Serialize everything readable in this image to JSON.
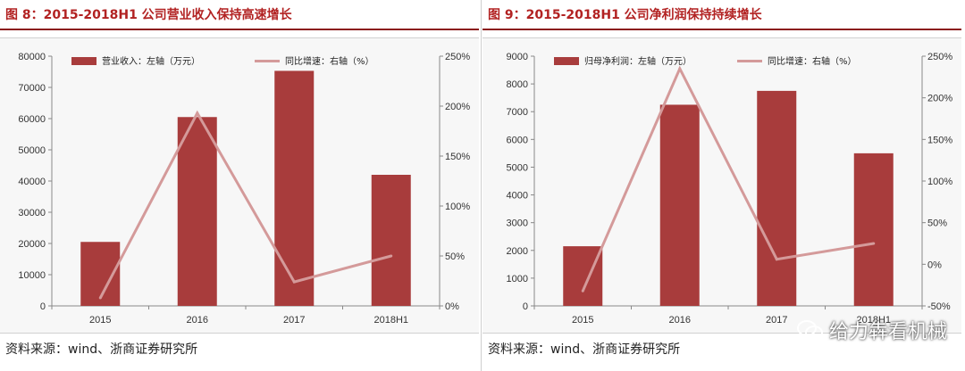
{
  "footer": {
    "source": "资料来源：wind、浙商证券研究所"
  },
  "watermark": {
    "text": "给力犇看机械",
    "icon": "wechat-icon"
  },
  "colors": {
    "bar": "#a83c3c",
    "line": "#d49a9a",
    "axis": "#888888"
  },
  "chart_data": [
    {
      "title": "图 8：2015-2018H1 公司营业收入保持高速增长",
      "type": "bar",
      "categories": [
        "2015",
        "2016",
        "2017",
        "2018H1"
      ],
      "series": [
        {
          "name": "营业收入：左轴（万元）",
          "type": "bar",
          "axis": "left",
          "values": [
            20500,
            60500,
            75300,
            42000
          ]
        },
        {
          "name": "同比增速：右轴（%）",
          "type": "line",
          "axis": "right",
          "values": [
            8,
            193,
            24,
            50
          ]
        }
      ],
      "ylim_left": [
        0,
        80000
      ],
      "yticks_left": [
        "0",
        "10000",
        "20000",
        "30000",
        "40000",
        "50000",
        "60000",
        "70000",
        "80000"
      ],
      "ylim_right": [
        0,
        250
      ],
      "yticks_right": [
        "0%",
        "50%",
        "100%",
        "150%",
        "200%",
        "250%"
      ],
      "legend": "top"
    },
    {
      "title": "图 9：2015-2018H1 公司净利润保持持续增长",
      "type": "bar",
      "categories": [
        "2015",
        "2016",
        "2017",
        "2018H1"
      ],
      "series": [
        {
          "name": "归母净利润：左轴（万元）",
          "type": "bar",
          "axis": "left",
          "values": [
            2150,
            7250,
            7750,
            5500
          ]
        },
        {
          "name": "同比增速：右轴（%）",
          "type": "line",
          "axis": "right",
          "values": [
            -32,
            235,
            6,
            25
          ]
        }
      ],
      "ylim_left": [
        0,
        9000
      ],
      "yticks_left": [
        "0",
        "1000",
        "2000",
        "3000",
        "4000",
        "5000",
        "6000",
        "7000",
        "8000",
        "9000"
      ],
      "ylim_right": [
        -50,
        250
      ],
      "yticks_right": [
        "-50%",
        "0%",
        "50%",
        "100%",
        "150%",
        "200%",
        "250%"
      ],
      "legend": "top"
    }
  ]
}
